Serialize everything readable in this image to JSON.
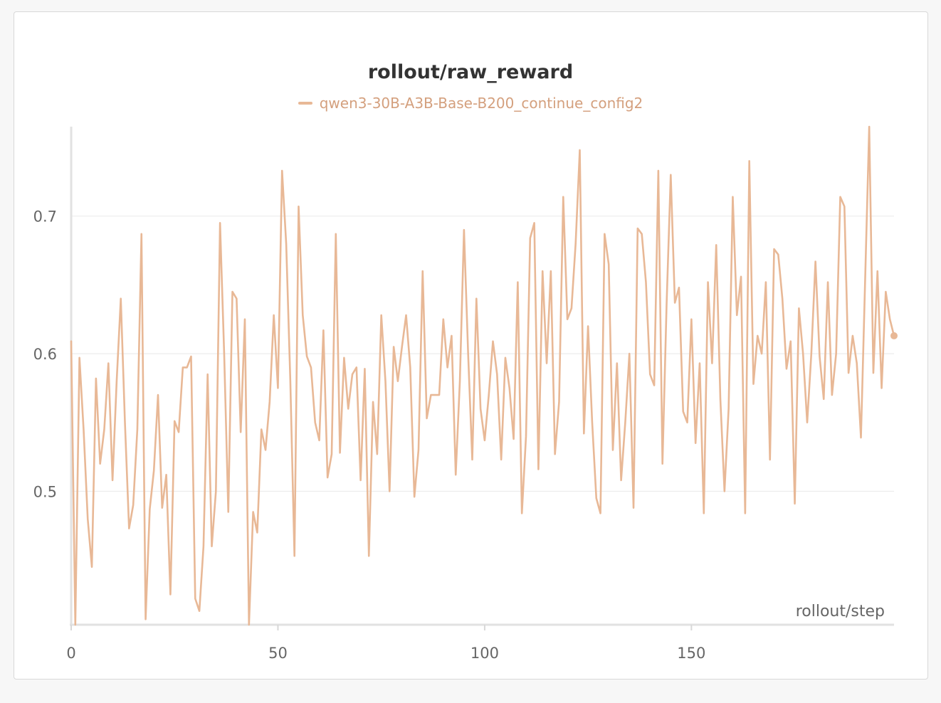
{
  "chart_data": {
    "type": "line",
    "title": "rollout/raw_reward",
    "xlabel": "rollout/step",
    "ylabel": "",
    "xlim": [
      0,
      199
    ],
    "ylim": [
      0.403,
      0.765
    ],
    "x_ticks": [
      0,
      50,
      100,
      150
    ],
    "y_ticks": [
      0.5,
      0.6,
      0.7
    ],
    "grid": true,
    "legend_position": "top-center",
    "series": [
      {
        "name": "qwen3-30B-A3B-Base-B200_continue_config2",
        "color": "#e8b896",
        "x": [
          0,
          1,
          2,
          3,
          4,
          5,
          6,
          7,
          8,
          9,
          10,
          11,
          12,
          13,
          14,
          15,
          16,
          17,
          18,
          19,
          20,
          21,
          22,
          23,
          24,
          25,
          26,
          27,
          28,
          29,
          30,
          31,
          32,
          33,
          34,
          35,
          36,
          37,
          38,
          39,
          40,
          41,
          42,
          43,
          44,
          45,
          46,
          47,
          48,
          49,
          50,
          51,
          52,
          53,
          54,
          55,
          56,
          57,
          58,
          59,
          60,
          61,
          62,
          63,
          64,
          65,
          66,
          67,
          68,
          69,
          70,
          71,
          72,
          73,
          74,
          75,
          76,
          77,
          78,
          79,
          80,
          81,
          82,
          83,
          84,
          85,
          86,
          87,
          88,
          89,
          90,
          91,
          92,
          93,
          94,
          95,
          96,
          97,
          98,
          99,
          100,
          101,
          102,
          103,
          104,
          105,
          106,
          107,
          108,
          109,
          110,
          111,
          112,
          113,
          114,
          115,
          116,
          117,
          118,
          119,
          120,
          121,
          122,
          123,
          124,
          125,
          126,
          127,
          128,
          129,
          130,
          131,
          132,
          133,
          134,
          135,
          136,
          137,
          138,
          139,
          140,
          141,
          142,
          143,
          144,
          145,
          146,
          147,
          148,
          149,
          150,
          151,
          152,
          153,
          154,
          155,
          156,
          157,
          158,
          159,
          160,
          161,
          162,
          163,
          164,
          165,
          166,
          167,
          168,
          169,
          170,
          171,
          172,
          173,
          174,
          175,
          176,
          177,
          178,
          179,
          180,
          181,
          182,
          183,
          184,
          185,
          186,
          187,
          188,
          189,
          190,
          191,
          192,
          193,
          194,
          195,
          196,
          197,
          198,
          199
        ],
        "y": [
          0.609,
          0.403,
          0.597,
          0.545,
          0.48,
          0.445,
          0.582,
          0.52,
          0.545,
          0.593,
          0.508,
          0.58,
          0.64,
          0.55,
          0.473,
          0.49,
          0.545,
          0.687,
          0.407,
          0.487,
          0.515,
          0.57,
          0.488,
          0.512,
          0.425,
          0.551,
          0.543,
          0.59,
          0.59,
          0.598,
          0.422,
          0.413,
          0.46,
          0.585,
          0.46,
          0.5,
          0.695,
          0.6,
          0.485,
          0.645,
          0.64,
          0.543,
          0.625,
          0.403,
          0.485,
          0.47,
          0.545,
          0.53,
          0.565,
          0.628,
          0.575,
          0.733,
          0.68,
          0.58,
          0.453,
          0.707,
          0.628,
          0.598,
          0.59,
          0.55,
          0.537,
          0.617,
          0.51,
          0.527,
          0.687,
          0.528,
          0.597,
          0.56,
          0.585,
          0.59,
          0.508,
          0.589,
          0.453,
          0.565,
          0.527,
          0.628,
          0.58,
          0.5,
          0.605,
          0.58,
          0.605,
          0.628,
          0.59,
          0.496,
          0.53,
          0.66,
          0.553,
          0.57,
          0.57,
          0.57,
          0.625,
          0.59,
          0.613,
          0.512,
          0.58,
          0.69,
          0.6,
          0.523,
          0.64,
          0.56,
          0.537,
          0.57,
          0.609,
          0.585,
          0.523,
          0.597,
          0.575,
          0.538,
          0.652,
          0.484,
          0.54,
          0.684,
          0.695,
          0.516,
          0.66,
          0.593,
          0.66,
          0.527,
          0.565,
          0.714,
          0.625,
          0.633,
          0.68,
          0.748,
          0.542,
          0.62,
          0.55,
          0.495,
          0.484,
          0.687,
          0.665,
          0.53,
          0.593,
          0.508,
          0.55,
          0.6,
          0.488,
          0.691,
          0.687,
          0.652,
          0.585,
          0.577,
          0.733,
          0.52,
          0.636,
          0.73,
          0.637,
          0.648,
          0.558,
          0.55,
          0.625,
          0.535,
          0.593,
          0.484,
          0.652,
          0.593,
          0.679,
          0.567,
          0.5,
          0.56,
          0.714,
          0.628,
          0.656,
          0.484,
          0.74,
          0.578,
          0.613,
          0.6,
          0.652,
          0.523,
          0.676,
          0.672,
          0.64,
          0.589,
          0.609,
          0.491,
          0.633,
          0.6,
          0.55,
          0.6,
          0.667,
          0.598,
          0.567,
          0.652,
          0.57,
          0.6,
          0.714,
          0.707,
          0.586,
          0.613,
          0.593,
          0.539,
          0.652,
          0.765,
          0.586,
          0.66,
          0.575,
          0.645,
          0.625,
          0.613
        ]
      }
    ]
  }
}
